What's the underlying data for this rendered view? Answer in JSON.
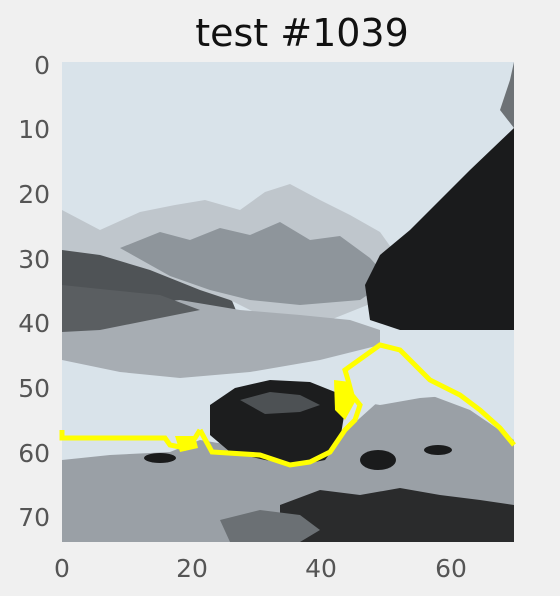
{
  "title": "test #1039",
  "image": {
    "description_kind": "posterized grayscale mountain-lake landscape with yellow segmentation contour",
    "grid_size": [
      75,
      75
    ],
    "colors": {
      "sky": "#d9e3ea",
      "light_gray": "#bfc6cc",
      "mid_gray": "#9aa0a6",
      "dark_gray": "#4b4f52",
      "black": "#121314",
      "contour": "#ffff00",
      "axes_bg": "#f0f0f0",
      "tick_text": "#555555"
    }
  },
  "axes": {
    "x_ticks": [
      "0",
      "20",
      "40",
      "60"
    ],
    "y_ticks": [
      "0",
      "10",
      "20",
      "30",
      "40",
      "50",
      "60",
      "70"
    ]
  }
}
